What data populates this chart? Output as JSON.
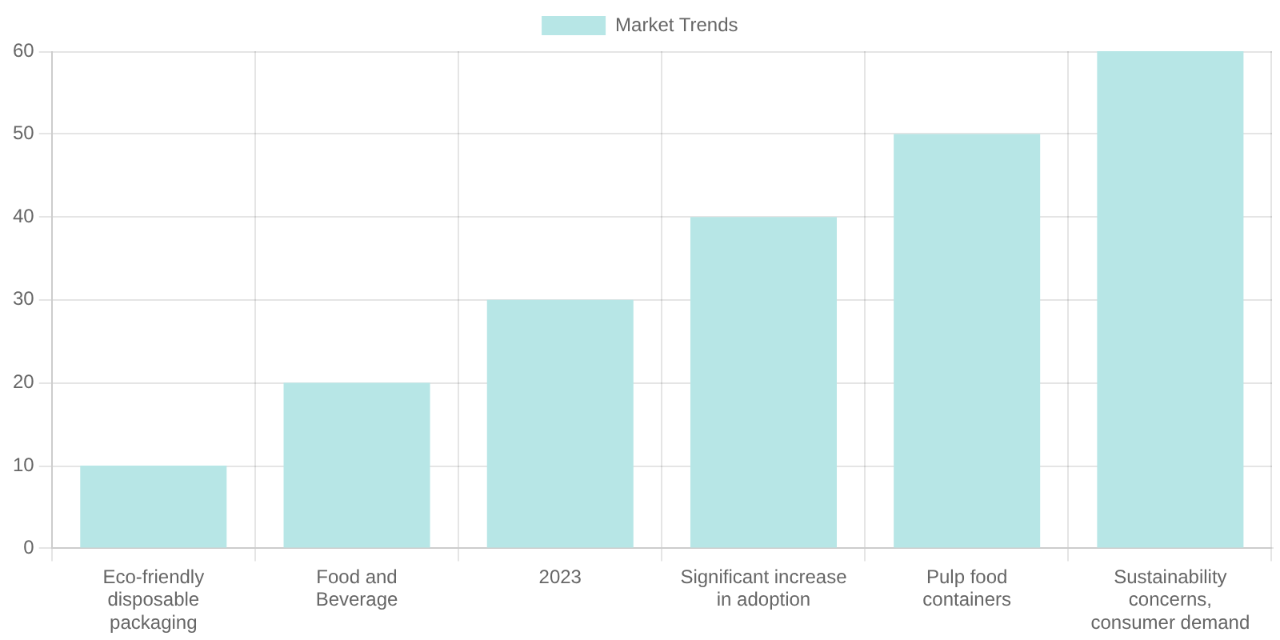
{
  "chart_data": {
    "type": "bar",
    "categories": [
      "Eco-friendly disposable packaging",
      "Food and Beverage",
      "2023",
      "Significant increase in adoption",
      "Pulp food containers",
      "Sustainability concerns, consumer demand"
    ],
    "series": [
      {
        "name": "Market Trends",
        "color": "#b7e6e6",
        "values": [
          10,
          20,
          30,
          40,
          50,
          60
        ]
      }
    ],
    "ylim": [
      0,
      60
    ],
    "yticks": [
      0,
      10,
      20,
      30,
      40,
      50,
      60
    ],
    "grid": true,
    "legend": "top"
  }
}
